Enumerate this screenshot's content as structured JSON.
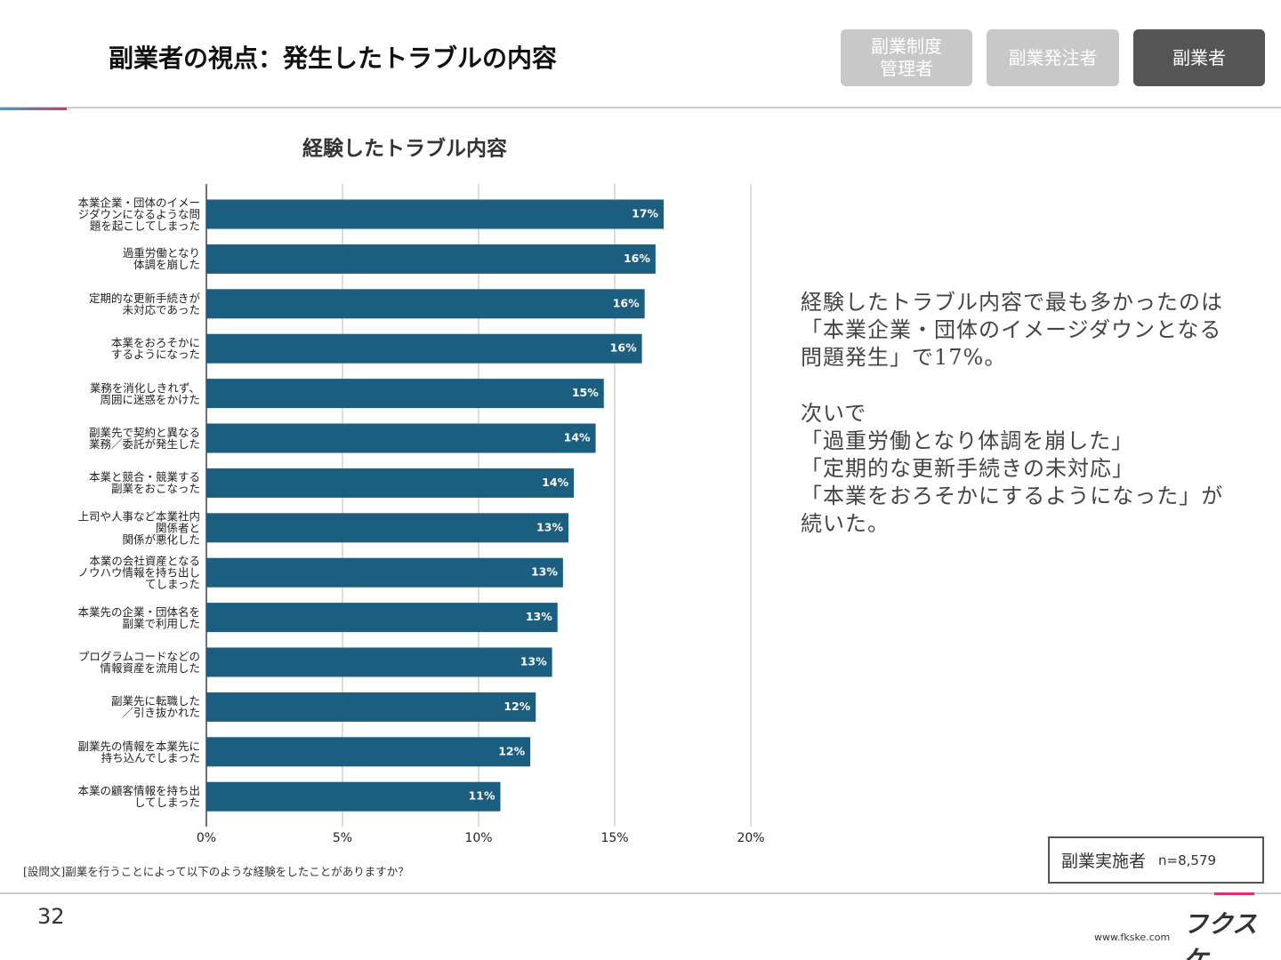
{
  "header": {
    "title": "副業者の視点：発生したトラブルの内容"
  },
  "tabs": [
    "副業制度\n管理者",
    "副業発注者",
    "副業者"
  ],
  "chart_data": {
    "type": "bar",
    "orientation": "horizontal",
    "title": "経験したトラブル内容",
    "categories": [
      "本業企業・団体のイメー\nジダウンになるような問\n題を起こしてしまった",
      "過重労働となり\n体調を崩した",
      "定期的な更新手続きが\n未対応であった",
      "本業をおろそかに\nするようになった",
      "業務を消化しきれず、\n周囲に迷惑をかけた",
      "副業先で契約と異なる\n業務／委託が発生した",
      "本業と競合・競業する\n副業をおこなった",
      "上司や人事など本業社内\n関係者と\n関係が悪化した",
      "本業の会社資産となる\nノウハウ情報を持ち出し\nてしまった",
      "本業先の企業・団体名を\n副業で利用した",
      "プログラムコードなどの\n情報資産を流用した",
      "副業先に転職した\n／引き抜かれた",
      "副業先の情報を本業先に\n持ち込んでしまった",
      "本業の顧客情報を持ち出\nしてしまった"
    ],
    "values": [
      16.8,
      16.5,
      16.1,
      16.0,
      14.6,
      14.3,
      13.5,
      13.3,
      13.1,
      12.9,
      12.7,
      12.1,
      11.9,
      10.8
    ],
    "value_labels": [
      "17%",
      "16%",
      "16%",
      "16%",
      "15%",
      "14%",
      "14%",
      "13%",
      "13%",
      "13%",
      "13%",
      "12%",
      "12%",
      "11%"
    ],
    "color": "#1b5e80",
    "xlim": [
      0,
      20
    ],
    "xticks": [
      {
        "value": 0,
        "label": "0%"
      },
      {
        "value": 5,
        "label": "5%"
      },
      {
        "value": 10,
        "label": "10%"
      },
      {
        "value": 15,
        "label": "15%"
      },
      {
        "value": 20,
        "label": "20%"
      }
    ],
    "grid": true
  },
  "commentary": [
    "経験したトラブル内容で最も多かったのは\n「本業企業・団体のイメージダウンとなる\n問題発生」で17%。",
    "次いで\n「過重労働となり体調を崩した」\n「定期的な更新手続きの未対応」\n「本業をおろそかにするようになった」が\n続いた。"
  ],
  "note": "[設問文]副業を行うことによって以下のような経験をしたことがありますか？",
  "sample": {
    "label": "副業実施者",
    "n": "n=8,579"
  },
  "footer": {
    "page": "32",
    "logo": "フクスケ",
    "url": "www.fkske.com"
  }
}
